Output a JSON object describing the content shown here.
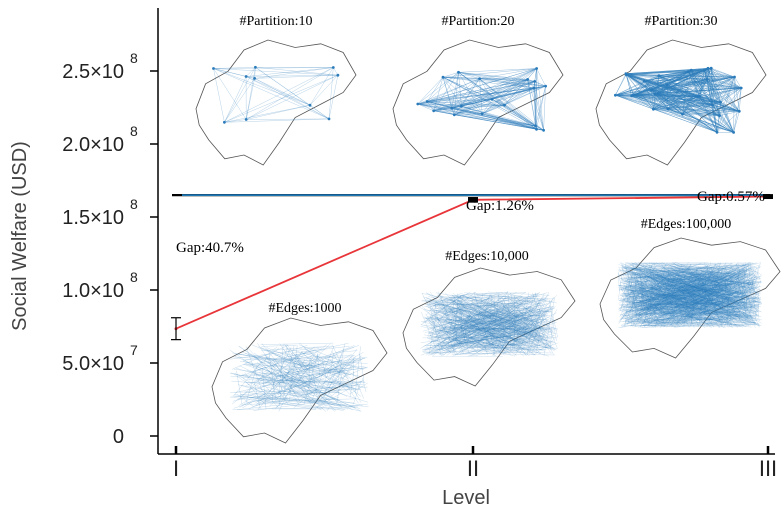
{
  "chart_data": {
    "type": "line",
    "xlabel": "Level",
    "ylabel": "Social Welfare (USD)",
    "categories": [
      "I",
      "II",
      "III"
    ],
    "ylim": [
      0,
      280000000
    ],
    "yticks": [
      {
        "value": 0,
        "mantissa": "0",
        "exponent": ""
      },
      {
        "value": 50000000,
        "mantissa": "5.0×10",
        "exponent": "7"
      },
      {
        "value": 100000000,
        "mantissa": "1.0×10",
        "exponent": "8"
      },
      {
        "value": 150000000,
        "mantissa": "1.5×10",
        "exponent": "8"
      },
      {
        "value": 200000000,
        "mantissa": "2.0×10",
        "exponent": "8"
      },
      {
        "value": 250000000,
        "mantissa": "2.5×10",
        "exponent": "8"
      }
    ],
    "upper_bound": {
      "value": 165000000,
      "color": "#1f77b4"
    },
    "series": [
      {
        "color": "#e8353a",
        "values": [
          73500000,
          161800000,
          164000000
        ],
        "errors": [
          {
            "low": 66000000,
            "high": 81000000
          },
          {
            "low": 160500000,
            "high": 163000000
          },
          {
            "low": 163000000,
            "high": 165000000
          }
        ]
      }
    ],
    "annotations": [
      {
        "text": "Gap:40.7%",
        "category": "I"
      },
      {
        "text": "Gap:1.26%",
        "category": "II"
      },
      {
        "text": "Gap:0.57%",
        "category": "III"
      }
    ],
    "insets": {
      "partition_labels": [
        "#Partition:10",
        "#Partition:20",
        "#Partition:30"
      ],
      "edge_labels": [
        "#Edges:1000",
        "#Edges:10,000",
        "#Edges:100,000"
      ],
      "network_color": "#2b7bba"
    }
  }
}
